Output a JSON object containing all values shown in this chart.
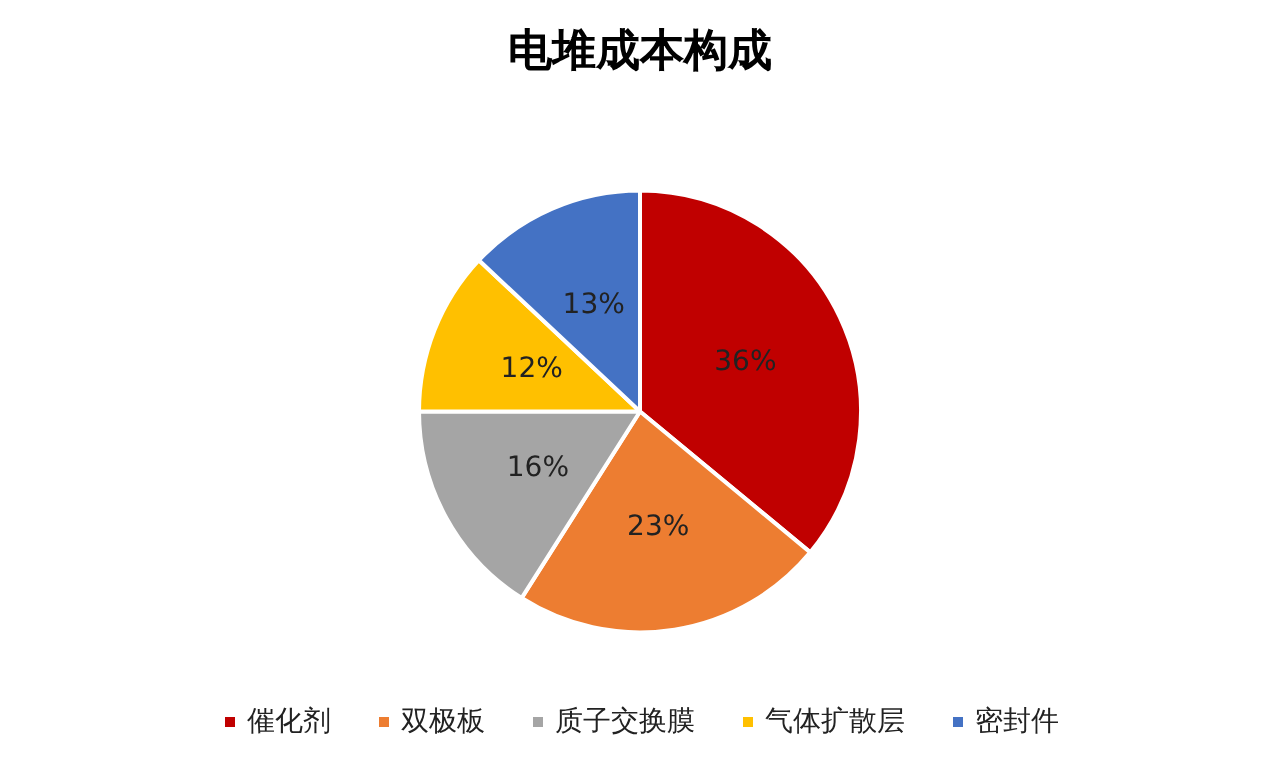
{
  "chart_data": {
    "type": "pie",
    "title": "电堆成本构成",
    "categories": [
      "催化剂",
      "双极板",
      "质子交换膜",
      "气体扩散层",
      "密封件"
    ],
    "values": [
      36,
      23,
      16,
      12,
      13
    ],
    "colors": [
      "#c00000",
      "#ed7d31",
      "#a5a5a5",
      "#ffc000",
      "#4472c4"
    ],
    "value_labels": [
      "36%",
      "23%",
      "16%",
      "12%",
      "13%"
    ],
    "legend": "bottom"
  }
}
